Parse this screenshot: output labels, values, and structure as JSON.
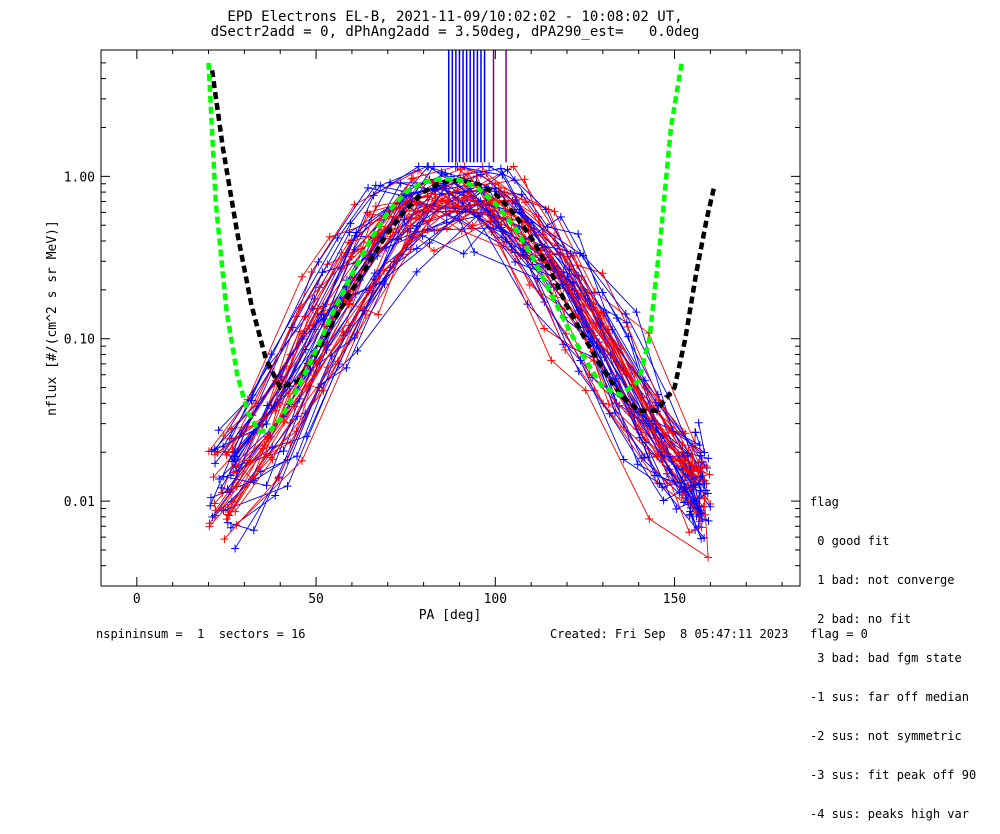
{
  "chart_data": {
    "type": "line",
    "title": "EPD Electrons EL-B, 2021-11-09/10:02:02 - 10:08:02 UT,",
    "subtitle": "dSectr2add = 0, dPhAng2add = 3.50deg, dPA290_est=   0.0deg",
    "xlabel": "PA [deg]",
    "ylabel": "nflux [#/(cm^2 s sr MeV)]",
    "xlim": [
      -10,
      185
    ],
    "ylim": [
      0.003,
      6.0
    ],
    "yscale": "log",
    "xticks": [
      0,
      50,
      100,
      150
    ],
    "xtick_labels": [
      "0",
      "50",
      "100",
      "150"
    ],
    "yticks": [
      0.01,
      0.1,
      1.0
    ],
    "ytick_labels": [
      "0.01",
      "0.10",
      "1.00"
    ],
    "grid": false,
    "series": [
      {
        "style": "dashed",
        "color": "#000000",
        "x": [
          21,
          24,
          28,
          32,
          36,
          40,
          45,
          50,
          55,
          60,
          65,
          70,
          75,
          80,
          85,
          90,
          95,
          100,
          105,
          110,
          115,
          120,
          125,
          130,
          135,
          140,
          145,
          150,
          153,
          156,
          159,
          161
        ],
        "y": [
          4.5,
          1.5,
          0.45,
          0.16,
          0.075,
          0.05,
          0.055,
          0.08,
          0.13,
          0.2,
          0.3,
          0.45,
          0.62,
          0.8,
          0.92,
          0.95,
          0.9,
          0.78,
          0.6,
          0.42,
          0.27,
          0.16,
          0.1,
          0.065,
          0.045,
          0.036,
          0.036,
          0.05,
          0.1,
          0.25,
          0.55,
          0.85
        ]
      },
      {
        "style": "dashed",
        "color": "#00ff00",
        "x": [
          20,
          22,
          25,
          28,
          31,
          34,
          37,
          40,
          45,
          50,
          55,
          60,
          65,
          70,
          75,
          80,
          85,
          90,
          95,
          100,
          105,
          110,
          115,
          120,
          125,
          130,
          135,
          140,
          143,
          146,
          149,
          152
        ],
        "y": [
          5.0,
          0.7,
          0.15,
          0.06,
          0.035,
          0.027,
          0.027,
          0.032,
          0.05,
          0.085,
          0.15,
          0.25,
          0.4,
          0.6,
          0.8,
          0.92,
          0.97,
          0.95,
          0.85,
          0.68,
          0.5,
          0.33,
          0.2,
          0.12,
          0.075,
          0.05,
          0.045,
          0.055,
          0.1,
          0.4,
          2.0,
          5.0
        ]
      }
    ],
    "mesh_colors": [
      "#ff0000",
      "#0000ff"
    ],
    "marker": "+",
    "vertical_ticks": {
      "color": "#0000ff",
      "x": [
        87,
        88,
        89,
        90,
        91,
        92,
        93,
        94,
        95,
        96,
        97
      ],
      "y_from": 1.22,
      "y_to": 6.0
    },
    "vertical_ticks_purple": {
      "color": "#800080",
      "x": [
        99.5,
        103
      ],
      "y_from": 1.22,
      "y_to": 6.0
    }
  },
  "legend": {
    "header": "flag",
    "items": [
      " 0 good fit",
      " 1 bad: not converge",
      " 2 bad: no fit",
      " 3 bad: bad fgm state",
      "-1 sus: far off median",
      "-2 sus: not symmetric",
      "-3 sus: fit peak off 90",
      "-4 sus: peaks high var"
    ]
  },
  "footer": {
    "left": "nspininsum =  1  sectors = 16",
    "right": "Created: Fri Sep  8 05:47:11 2023   flag = 0"
  }
}
